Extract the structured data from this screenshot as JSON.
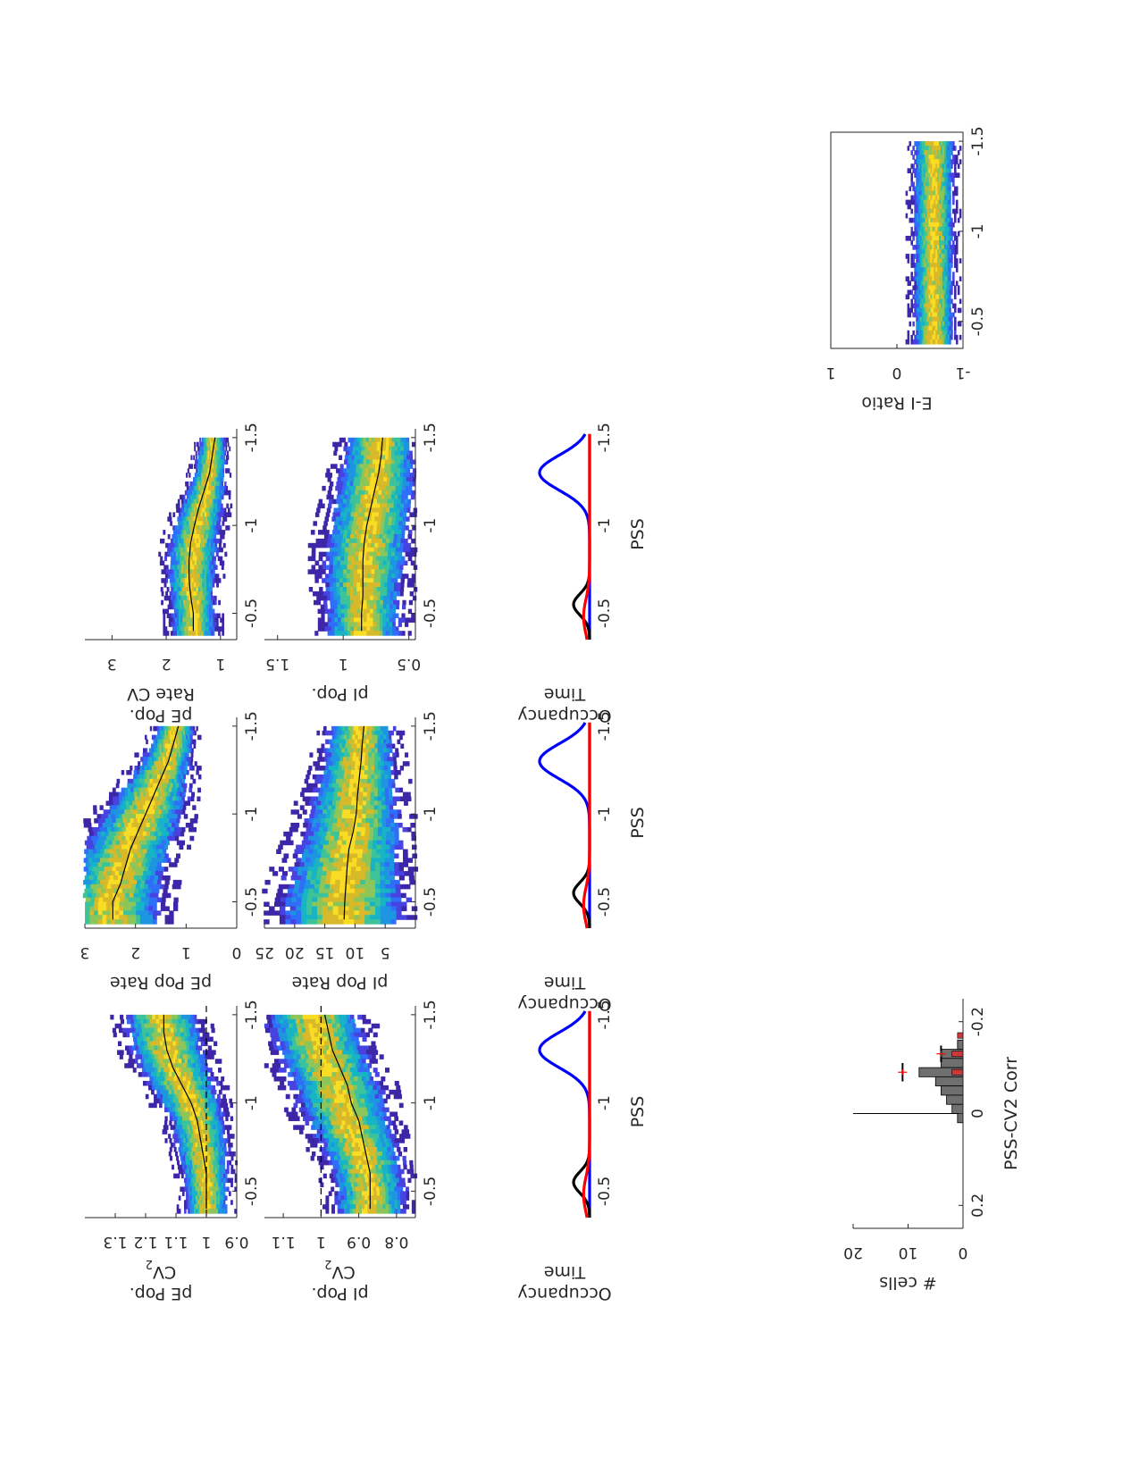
{
  "figure": {
    "orientation": "rotated-90-cw"
  },
  "colors": {
    "blue": "#0000ff",
    "red": "#ff0000",
    "black": "#000000",
    "hist_gray": "#6f6f6f",
    "hist_red": "#c83a3a",
    "axis": "#262626"
  },
  "colormap": [
    "#3e26a8",
    "#4743e0",
    "#2f6ef8",
    "#1e95e0",
    "#16b4c4",
    "#3cc39a",
    "#8cc65a",
    "#d8b92a",
    "#f9dc24"
  ],
  "chart_data": [
    {
      "id": "cv2_pE",
      "type": "heatmap",
      "ylabel_lines": [
        "CV",
        "pE Pop."
      ],
      "ylabel_sub": "2",
      "xlim": [
        -1.55,
        -0.35
      ],
      "ylim": [
        0.9,
        1.4
      ],
      "xticks": [
        -1.5,
        -1,
        -0.5
      ],
      "xtick_labels": [
        "-1.5",
        "-1",
        "-0.5"
      ],
      "yticks": [
        0.9,
        1.0,
        1.1,
        1.2,
        1.3
      ],
      "ytick_labels": [
        "0.9",
        "1",
        "1.1",
        "1.2",
        "1.3"
      ],
      "refline": 1.0,
      "band": {
        "x": [
          -1.5,
          -1.3,
          -1.1,
          -0.9,
          -0.7,
          -0.5,
          -0.4
        ],
        "center": [
          1.15,
          1.13,
          1.08,
          1.03,
          1.01,
          1.0,
          1.0
        ],
        "width": [
          0.12,
          0.12,
          0.11,
          0.09,
          0.08,
          0.07,
          0.07
        ]
      },
      "mean_line": {
        "x": [
          -1.5,
          -1.4,
          -1.3,
          -1.2,
          -1.1,
          -1.0,
          -0.9,
          -0.8,
          -0.7,
          -0.6,
          -0.5,
          -0.4
        ],
        "y": [
          1.14,
          1.14,
          1.13,
          1.11,
          1.08,
          1.05,
          1.03,
          1.02,
          1.01,
          1.0,
          1.0,
          1.0
        ]
      }
    },
    {
      "id": "cv2_pI",
      "type": "heatmap",
      "ylabel_lines": [
        "CV",
        "pI Pop."
      ],
      "ylabel_sub": "2",
      "xlim": [
        -1.55,
        -0.35
      ],
      "ylim": [
        0.75,
        1.15
      ],
      "xticks": [
        -1.5,
        -1,
        -0.5
      ],
      "xtick_labels": [
        "-1.5",
        "-1",
        "-0.5"
      ],
      "yticks": [
        0.8,
        0.9,
        1.0,
        1.1
      ],
      "ytick_labels": [
        "0.8",
        "0.9",
        "1",
        "1.1"
      ],
      "refline": 1.0,
      "band": {
        "x": [
          -1.5,
          -1.3,
          -1.1,
          -0.9,
          -0.7,
          -0.5,
          -0.4
        ],
        "center": [
          1.02,
          1.0,
          0.96,
          0.93,
          0.89,
          0.87,
          0.87
        ],
        "width": [
          0.12,
          0.12,
          0.12,
          0.11,
          0.1,
          0.09,
          0.09
        ]
      },
      "mean_line": {
        "x": [
          -1.5,
          -1.4,
          -1.3,
          -1.2,
          -1.1,
          -1.0,
          -0.9,
          -0.8,
          -0.7,
          -0.6,
          -0.5,
          -0.4
        ],
        "y": [
          0.99,
          0.98,
          0.97,
          0.95,
          0.93,
          0.92,
          0.9,
          0.89,
          0.88,
          0.87,
          0.87,
          0.87
        ]
      }
    },
    {
      "id": "pE_rate",
      "type": "heatmap",
      "ylabel_lines": [
        "pE Pop Rate"
      ],
      "xlim": [
        -1.55,
        -0.35
      ],
      "ylim": [
        0,
        3
      ],
      "xticks": [
        -1.5,
        -1,
        -0.5
      ],
      "xtick_labels": [
        "-1.5",
        "-1",
        "-0.5"
      ],
      "yticks": [
        0,
        1,
        2,
        3
      ],
      "ytick_labels": [
        "0",
        "1",
        "2",
        "3"
      ],
      "band": {
        "x": [
          -1.5,
          -1.3,
          -1.1,
          -0.9,
          -0.7,
          -0.5,
          -0.4
        ],
        "center": [
          1.2,
          1.4,
          1.7,
          2.0,
          2.3,
          2.5,
          2.5
        ],
        "width": [
          0.35,
          0.5,
          0.7,
          0.85,
          0.9,
          0.95,
          0.95
        ]
      },
      "mean_line": {
        "x": [
          -1.5,
          -1.4,
          -1.3,
          -1.2,
          -1.1,
          -1.0,
          -0.9,
          -0.8,
          -0.7,
          -0.6,
          -0.5,
          -0.4
        ],
        "y": [
          1.15,
          1.25,
          1.35,
          1.5,
          1.65,
          1.8,
          1.95,
          2.1,
          2.2,
          2.3,
          2.45,
          2.45
        ]
      }
    },
    {
      "id": "pI_rate",
      "type": "heatmap",
      "ylabel_lines": [
        "pI Pop Rate"
      ],
      "xlim": [
        -1.55,
        -0.35
      ],
      "ylim": [
        0,
        25
      ],
      "xticks": [
        -1.5,
        -1,
        -0.5
      ],
      "xtick_labels": [
        "-1.5",
        "-1",
        "-0.5"
      ],
      "yticks": [
        5,
        10,
        15,
        20,
        25
      ],
      "ytick_labels": [
        "5",
        "10",
        "15",
        "20",
        "25"
      ],
      "band": {
        "x": [
          -1.5,
          -1.3,
          -1.1,
          -0.9,
          -0.7,
          -0.5,
          -0.4
        ],
        "center": [
          9,
          9.5,
          10,
          10.5,
          11.5,
          12,
          12
        ],
        "width": [
          5,
          6,
          7,
          8,
          9,
          10,
          10
        ]
      },
      "mean_line": {
        "x": [
          -1.5,
          -1.4,
          -1.3,
          -1.2,
          -1.1,
          -1.0,
          -0.9,
          -0.8,
          -0.7,
          -0.6,
          -0.5,
          -0.4
        ],
        "y": [
          8.5,
          8.8,
          9.0,
          9.3,
          9.6,
          9.8,
          10.3,
          11.0,
          11.3,
          11.5,
          11.7,
          11.8
        ]
      }
    },
    {
      "id": "rate_cv",
      "type": "heatmap",
      "ylabel_lines": [
        "Rate CV",
        "pE Pop."
      ],
      "xlim": [
        -1.55,
        -0.35
      ],
      "ylim": [
        0.7,
        3.5
      ],
      "xticks": [
        -1.5,
        -1,
        -0.5
      ],
      "xtick_labels": [
        "-1.5",
        "-1",
        "-0.5"
      ],
      "yticks": [
        1,
        2,
        3
      ],
      "ytick_labels": [
        "1",
        "2",
        "3"
      ],
      "band": {
        "x": [
          -1.5,
          -1.3,
          -1.1,
          -0.9,
          -0.7,
          -0.5,
          -0.4
        ],
        "center": [
          1.15,
          1.2,
          1.35,
          1.5,
          1.55,
          1.5,
          1.5
        ],
        "width": [
          0.22,
          0.3,
          0.4,
          0.45,
          0.45,
          0.4,
          0.4
        ]
      },
      "mean_line": {
        "x": [
          -1.5,
          -1.4,
          -1.3,
          -1.2,
          -1.1,
          -1.0,
          -0.9,
          -0.8,
          -0.7,
          -0.6,
          -0.5,
          -0.4
        ],
        "y": [
          1.1,
          1.15,
          1.2,
          1.3,
          1.4,
          1.48,
          1.55,
          1.58,
          1.58,
          1.55,
          1.5,
          1.5
        ]
      }
    },
    {
      "id": "rate_cv_pI",
      "type": "heatmap",
      "ylabel_lines": [
        "pI Pop."
      ],
      "xlim": [
        -1.55,
        -0.35
      ],
      "ylim": [
        0.45,
        1.6
      ],
      "xticks": [
        -1.5,
        -1,
        -0.5
      ],
      "xtick_labels": [
        "-1.5",
        "-1",
        "-0.5"
      ],
      "yticks": [
        0.5,
        1,
        1.5
      ],
      "ytick_labels": [
        "0.5",
        "1",
        "1.5"
      ],
      "band": {
        "x": [
          -1.5,
          -1.3,
          -1.1,
          -0.9,
          -0.7,
          -0.5,
          -0.4
        ],
        "center": [
          0.72,
          0.74,
          0.78,
          0.82,
          0.85,
          0.85,
          0.85
        ],
        "width": [
          0.25,
          0.28,
          0.3,
          0.32,
          0.3,
          0.28,
          0.28
        ]
      },
      "mean_line": {
        "x": [
          -1.5,
          -1.4,
          -1.3,
          -1.2,
          -1.1,
          -1.0,
          -0.9,
          -0.8,
          -0.7,
          -0.6,
          -0.5,
          -0.4
        ],
        "y": [
          0.7,
          0.71,
          0.73,
          0.76,
          0.79,
          0.82,
          0.84,
          0.85,
          0.85,
          0.85,
          0.86,
          0.86
        ]
      }
    },
    {
      "id": "occupancy_1",
      "type": "line",
      "ylabel_lines": [
        "Time",
        "Occupancy"
      ],
      "xlabel": "PSS",
      "xlim": [
        -1.55,
        -0.35
      ],
      "ylim": [
        0,
        1
      ],
      "xticks": [
        -1.5,
        -1,
        -0.5
      ],
      "xtick_labels": [
        "-1.5",
        "-1",
        "-0.5"
      ],
      "series": [
        {
          "color": "blue",
          "peaks": [
            {
              "mu": -1.3,
              "sigma": 0.1,
              "amp": 1.0
            }
          ]
        },
        {
          "color": "black",
          "peaks": [
            {
              "mu": -0.55,
              "sigma": 0.06,
              "amp": 0.32
            }
          ]
        },
        {
          "color": "red",
          "peaks": [
            {
              "mu": -0.48,
              "sigma": 0.1,
              "amp": 0.12
            }
          ]
        }
      ]
    },
    {
      "id": "occupancy_2",
      "type": "line",
      "ylabel_lines": [
        "Time",
        "Occupancy"
      ],
      "xlabel": "PSS",
      "xlim": [
        -1.55,
        -0.35
      ],
      "ylim": [
        0,
        1
      ],
      "xticks": [
        -1.5,
        -1,
        -0.5
      ],
      "xtick_labels": [
        "-1.5",
        "-1",
        "-0.5"
      ],
      "series": [
        {
          "color": "blue",
          "peaks": [
            {
              "mu": -1.3,
              "sigma": 0.1,
              "amp": 1.0
            }
          ]
        },
        {
          "color": "black",
          "peaks": [
            {
              "mu": -0.55,
              "sigma": 0.06,
              "amp": 0.32
            }
          ]
        },
        {
          "color": "red",
          "peaks": [
            {
              "mu": -0.48,
              "sigma": 0.1,
              "amp": 0.12
            }
          ]
        }
      ]
    },
    {
      "id": "occupancy_3",
      "type": "line",
      "ylabel_lines": [
        "Time",
        "Occupancy"
      ],
      "xlabel": "PSS",
      "xlim": [
        -1.55,
        -0.35
      ],
      "ylim": [
        0,
        1
      ],
      "xticks": [
        -1.5,
        -1,
        -0.5
      ],
      "xtick_labels": [
        "-1.5",
        "-1",
        "-0.5"
      ],
      "series": [
        {
          "color": "blue",
          "peaks": [
            {
              "mu": -1.3,
              "sigma": 0.1,
              "amp": 1.0
            }
          ]
        },
        {
          "color": "black",
          "peaks": [
            {
              "mu": -0.55,
              "sigma": 0.06,
              "amp": 0.32
            }
          ]
        },
        {
          "color": "red",
          "peaks": [
            {
              "mu": -0.48,
              "sigma": 0.1,
              "amp": 0.12
            }
          ]
        }
      ]
    },
    {
      "id": "histogram",
      "type": "bar",
      "ylabel_lines": [
        "# cells"
      ],
      "xlabel": "PSS-CV2 Corr",
      "xlim": [
        -0.25,
        0.25
      ],
      "ylim": [
        0,
        20
      ],
      "xticks": [
        -0.2,
        0,
        0.2
      ],
      "xtick_labels": [
        "-0.2",
        "0",
        "0.2"
      ],
      "yticks": [
        0,
        10,
        20
      ],
      "ytick_labels": [
        "0",
        "10",
        "20"
      ],
      "bin_edges": [
        -0.18,
        -0.16,
        -0.14,
        -0.12,
        -0.1,
        -0.08,
        -0.06,
        -0.04,
        -0.02,
        0.0,
        0.02
      ],
      "gray_counts": [
        0,
        1,
        4,
        4,
        8,
        5,
        4,
        3,
        2,
        1
      ],
      "red_counts": [
        1,
        0,
        2,
        0,
        2,
        0,
        0,
        0,
        0,
        0
      ],
      "vline": 0,
      "markers": [
        {
          "color": "black",
          "x": -0.09,
          "y": 11,
          "halfwidth": 0.02
        },
        {
          "color": "red",
          "x": -0.09,
          "y": 11,
          "halfwidth": 0.006
        },
        {
          "color": "black",
          "x": -0.13,
          "y": 4,
          "halfwidth": 0.018
        },
        {
          "color": "red",
          "x": -0.13,
          "y": 4,
          "halfwidth": 0.006
        }
      ]
    },
    {
      "id": "ei_ratio",
      "type": "heatmap",
      "ylabel_lines": [
        "E-I Ratio"
      ],
      "xlim": [
        -1.55,
        -0.35
      ],
      "ylim": [
        -1,
        1
      ],
      "xticks": [
        -1.5,
        -1,
        -0.5
      ],
      "xtick_labels": [
        "-1.5",
        "-1",
        "-0.5"
      ],
      "yticks": [
        -1,
        0,
        1
      ],
      "ytick_labels": [
        "-1",
        "0",
        "1"
      ],
      "band": {
        "x": [
          -1.5,
          -1.0,
          -0.5,
          -0.4
        ],
        "center": [
          -0.55,
          -0.55,
          -0.55,
          -0.55
        ],
        "width": [
          0.3,
          0.3,
          0.3,
          0.3
        ]
      }
    }
  ]
}
